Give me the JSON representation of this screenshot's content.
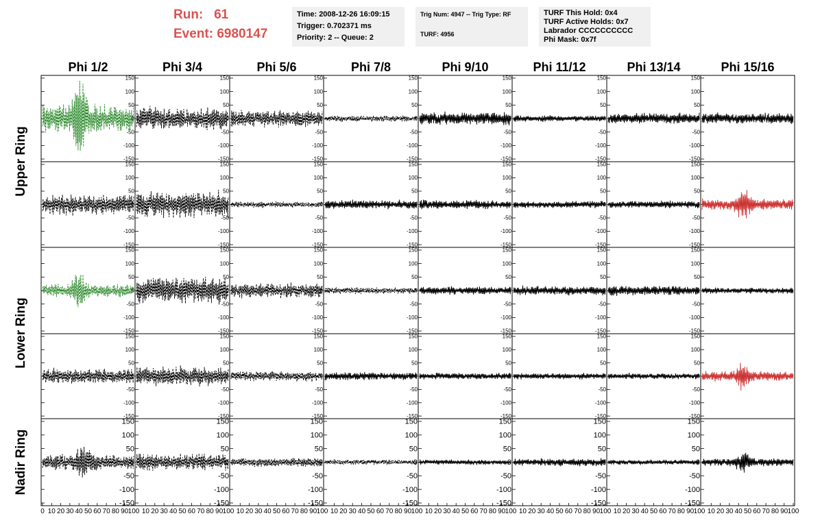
{
  "header": {
    "run_label": "Run:",
    "run_value": "61",
    "event_label": "Event:",
    "event_value": "6980147",
    "time": "Time: 2008-12-26 16:09:15",
    "trigger": "Trigger: 0.702371 ms",
    "priority": "Priority: 2 -- Queue: 2",
    "trig": "Trig Num: 4947 -- Trig Type: RF",
    "turf": "TURF: 4956",
    "turf_hold": "TURF This Hold: 0x4",
    "turf_active": "TURF Active Holds: 0x7",
    "labrador": "Labrador CCCCCCCCCC",
    "phi_mask": "Phi Mask: 0x7f"
  },
  "chart_data": {
    "type": "line",
    "columns": [
      "Phi 1/2",
      "Phi 3/4",
      "Phi 5/6",
      "Phi 7/8",
      "Phi 9/10",
      "Phi 11/12",
      "Phi 13/14",
      "Phi 15/16"
    ],
    "row_groups": [
      {
        "label": "Upper Ring",
        "rows": [
          0,
          1
        ]
      },
      {
        "label": "Lower Ring",
        "rows": [
          2,
          3
        ]
      },
      {
        "label": "Nadir Ring",
        "rows": [
          4
        ]
      }
    ],
    "xlim": [
      0,
      100
    ],
    "ylim": [
      -160,
      160
    ],
    "y_ticks": [
      150,
      100,
      50,
      0,
      -50,
      -100,
      -150
    ],
    "x_tick_labels": [
      "0",
      "10",
      "20",
      "30",
      "40",
      "50",
      "60",
      "70",
      "80",
      "90",
      "100"
    ],
    "colors": {
      "black": "#000000",
      "green": "#2e8b2e",
      "red": "#cc3333"
    },
    "panels": [
      [
        {
          "amp": 55,
          "color": "green",
          "dash": true,
          "burst": 40
        },
        {
          "amp": 45,
          "color": "black",
          "dash": true
        },
        {
          "amp": 35,
          "color": "black",
          "dash": true
        },
        {
          "amp": 12,
          "color": "black",
          "dash": true
        },
        {
          "amp": 25,
          "color": "black",
          "dash": false
        },
        {
          "amp": 12,
          "color": "black",
          "dash": false
        },
        {
          "amp": 22,
          "color": "black",
          "dash": false
        },
        {
          "amp": 22,
          "color": "black",
          "dash": false
        }
      ],
      [
        {
          "amp": 42,
          "color": "black",
          "dash": true
        },
        {
          "amp": 55,
          "color": "black",
          "dash": true
        },
        {
          "amp": 12,
          "color": "black",
          "dash": true
        },
        {
          "amp": 18,
          "color": "black",
          "dash": false
        },
        {
          "amp": 18,
          "color": "black",
          "dash": false
        },
        {
          "amp": 15,
          "color": "black",
          "dash": false
        },
        {
          "amp": 15,
          "color": "black",
          "dash": false
        },
        {
          "amp": 22,
          "color": "red",
          "dash": false,
          "burst": 45
        }
      ],
      [
        {
          "amp": 25,
          "color": "green",
          "dash": true,
          "burst": 40
        },
        {
          "amp": 55,
          "color": "black",
          "dash": true
        },
        {
          "amp": 30,
          "color": "black",
          "dash": true
        },
        {
          "amp": 14,
          "color": "black",
          "dash": true
        },
        {
          "amp": 16,
          "color": "black",
          "dash": false
        },
        {
          "amp": 18,
          "color": "black",
          "dash": false
        },
        {
          "amp": 20,
          "color": "black",
          "dash": false
        },
        {
          "amp": 12,
          "color": "black",
          "dash": false
        }
      ],
      [
        {
          "amp": 30,
          "color": "black",
          "dash": true
        },
        {
          "amp": 40,
          "color": "black",
          "dash": true
        },
        {
          "amp": 20,
          "color": "black",
          "dash": true
        },
        {
          "amp": 16,
          "color": "black",
          "dash": false
        },
        {
          "amp": 14,
          "color": "black",
          "dash": false
        },
        {
          "amp": 12,
          "color": "black",
          "dash": false
        },
        {
          "amp": 12,
          "color": "black",
          "dash": false
        },
        {
          "amp": 20,
          "color": "red",
          "dash": false,
          "burst": 45
        }
      ],
      [
        {
          "amp": 30,
          "color": "black",
          "dash": true,
          "burst": 45
        },
        {
          "amp": 35,
          "color": "black",
          "dash": true
        },
        {
          "amp": 18,
          "color": "black",
          "dash": true
        },
        {
          "amp": 10,
          "color": "black",
          "dash": true
        },
        {
          "amp": 10,
          "color": "black",
          "dash": false
        },
        {
          "amp": 15,
          "color": "black",
          "dash": false
        },
        {
          "amp": 10,
          "color": "black",
          "dash": false
        },
        {
          "amp": 15,
          "color": "black",
          "dash": false,
          "burst": 45
        }
      ]
    ]
  }
}
